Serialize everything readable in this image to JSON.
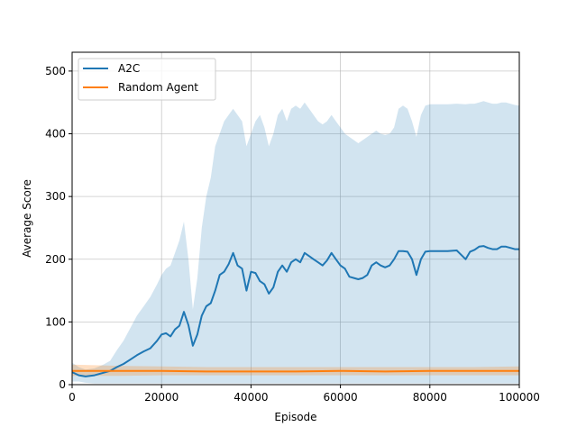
{
  "chart_data": {
    "type": "line",
    "title": "",
    "xlabel": "Episode",
    "ylabel": "Average Score",
    "xlim": [
      0,
      100000
    ],
    "ylim": [
      0,
      530
    ],
    "xticks": [
      0,
      20000,
      40000,
      60000,
      80000,
      100000
    ],
    "xtick_labels": [
      "0",
      "20000",
      "40000",
      "60000",
      "80000",
      "100000"
    ],
    "yticks": [
      0,
      100,
      200,
      300,
      400,
      500
    ],
    "ytick_labels": [
      "0",
      "100",
      "200",
      "300",
      "400",
      "500"
    ],
    "grid": true,
    "legend_position": "top-left",
    "series": [
      {
        "name": "A2C",
        "color": "#1f77b4",
        "x": [
          0,
          1500,
          3000,
          5000,
          7000,
          8500,
          10000,
          11500,
          13000,
          14500,
          16000,
          17500,
          19000,
          20000,
          21000,
          22000,
          23000,
          24000,
          25000,
          26000,
          27000,
          28000,
          29000,
          30000,
          31000,
          32000,
          33000,
          34000,
          35000,
          36000,
          37000,
          38000,
          39000,
          40000,
          41000,
          42000,
          43000,
          44000,
          45000,
          46000,
          47000,
          48000,
          49000,
          50000,
          51000,
          52000,
          53000,
          54000,
          55000,
          56000,
          57000,
          58000,
          59000,
          60000,
          61000,
          62000,
          63000,
          64000,
          65000,
          66000,
          67000,
          68000,
          69000,
          70000,
          71000,
          72000,
          73000,
          74000,
          75000,
          76000,
          77000,
          78000,
          79000,
          80000,
          81000,
          82000,
          84000,
          86000,
          88000,
          89000,
          90000,
          91000,
          92000,
          93000,
          94000,
          95000,
          96000,
          97000,
          98000,
          99000,
          100000
        ],
        "values": [
          20,
          15,
          13,
          15,
          19,
          22,
          28,
          33,
          40,
          47,
          53,
          58,
          70,
          80,
          82,
          77,
          88,
          94,
          116,
          95,
          62,
          80,
          110,
          125,
          130,
          150,
          175,
          180,
          192,
          210,
          190,
          185,
          150,
          180,
          178,
          165,
          160,
          145,
          155,
          180,
          190,
          180,
          195,
          200,
          195,
          210,
          205,
          200,
          195,
          190,
          198,
          210,
          200,
          190,
          185,
          172,
          170,
          168,
          170,
          175,
          190,
          195,
          190,
          187,
          190,
          200,
          213,
          213,
          212,
          200,
          175,
          200,
          212,
          213,
          213,
          213,
          213,
          214,
          200,
          212,
          215,
          220,
          221,
          218,
          216,
          216,
          220,
          220,
          218,
          216,
          216
        ],
        "band_lower": [
          5,
          5,
          3,
          2,
          2,
          2,
          2,
          2,
          2,
          2,
          2,
          2,
          2,
          2,
          2,
          2,
          2,
          2,
          2,
          2,
          2,
          2,
          2,
          2,
          2,
          2,
          2,
          2,
          2,
          2,
          2,
          2,
          2,
          2,
          2,
          2,
          2,
          2,
          2,
          2,
          2,
          2,
          2,
          2,
          2,
          2,
          2,
          2,
          2,
          2,
          2,
          2,
          2,
          2,
          2,
          2,
          2,
          2,
          2,
          2,
          2,
          2,
          2,
          2,
          2,
          2,
          2,
          2,
          2,
          2,
          2,
          2,
          2,
          2,
          2,
          2,
          2,
          2,
          2,
          2,
          2,
          2,
          2,
          2,
          2,
          2,
          2,
          2,
          2,
          2,
          2
        ],
        "band_upper": [
          35,
          28,
          24,
          26,
          32,
          38,
          55,
          70,
          90,
          110,
          125,
          140,
          160,
          175,
          185,
          190,
          210,
          230,
          260,
          200,
          120,
          170,
          250,
          300,
          330,
          380,
          400,
          420,
          430,
          440,
          430,
          420,
          380,
          400,
          420,
          430,
          410,
          380,
          400,
          430,
          440,
          420,
          440,
          445,
          440,
          450,
          440,
          430,
          420,
          415,
          420,
          430,
          420,
          410,
          400,
          395,
          390,
          385,
          390,
          395,
          400,
          405,
          400,
          398,
          400,
          410,
          440,
          445,
          440,
          420,
          395,
          430,
          445,
          447,
          447,
          447,
          447,
          448,
          447,
          448,
          448,
          450,
          452,
          450,
          448,
          448,
          450,
          450,
          448,
          446,
          445
        ]
      },
      {
        "name": "Random Agent",
        "color": "#ff7f0e",
        "x": [
          0,
          10000,
          20000,
          30000,
          40000,
          50000,
          60000,
          70000,
          80000,
          90000,
          100000
        ],
        "values": [
          22,
          22,
          22,
          21,
          21,
          21,
          22,
          21,
          22,
          22,
          22
        ],
        "band_lower": [
          14,
          14,
          15,
          15,
          15,
          15,
          15,
          15,
          15,
          15,
          15
        ],
        "band_upper": [
          32,
          30,
          29,
          28,
          28,
          28,
          28,
          28,
          28,
          28,
          29
        ]
      }
    ]
  }
}
